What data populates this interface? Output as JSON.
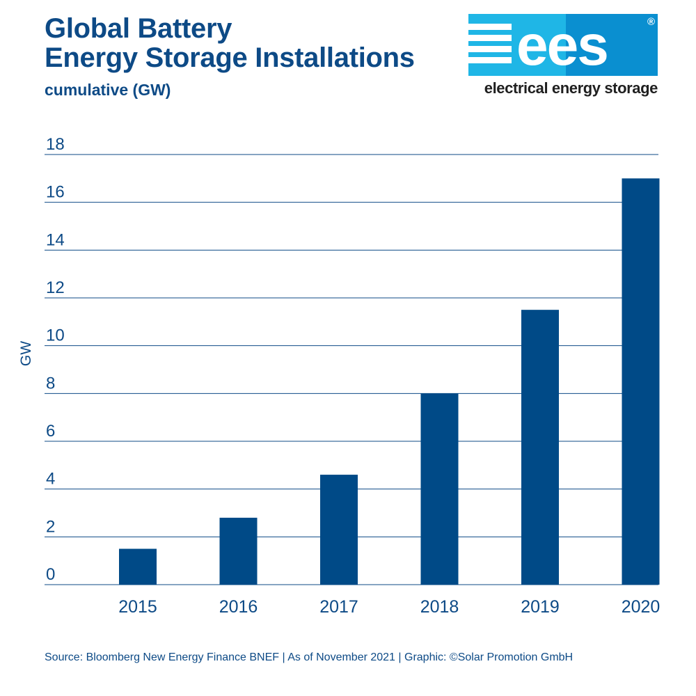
{
  "header": {
    "title_line1": "Global Battery",
    "title_line2": "Energy Storage Installations",
    "subtitle": "cumulative (GW)"
  },
  "logo": {
    "wordmark": "ees",
    "registered": "®",
    "tagline": "electrical energy storage",
    "colors": {
      "light": "#1fb6e6",
      "dark": "#0a8fd0",
      "tagline": "#1f1f1f"
    }
  },
  "chart_data": {
    "type": "bar",
    "categories": [
      "2015",
      "2016",
      "2017",
      "2018",
      "2019",
      "2020"
    ],
    "values": [
      1.5,
      2.8,
      4.6,
      8.0,
      11.5,
      17.0
    ],
    "title": "",
    "xlabel": "",
    "ylabel": "GW",
    "ylim": [
      0,
      18
    ],
    "yticks": [
      0,
      2,
      4,
      6,
      8,
      10,
      12,
      14,
      16,
      18
    ],
    "grid": true,
    "colors": {
      "bar": "#004a87",
      "text": "#0d4a86",
      "grid": "#0d4a86"
    }
  },
  "footer": {
    "source": "Source: Bloomberg New Energy Finance BNEF | As of November 2021 | Graphic: ©Solar Promotion GmbH"
  }
}
